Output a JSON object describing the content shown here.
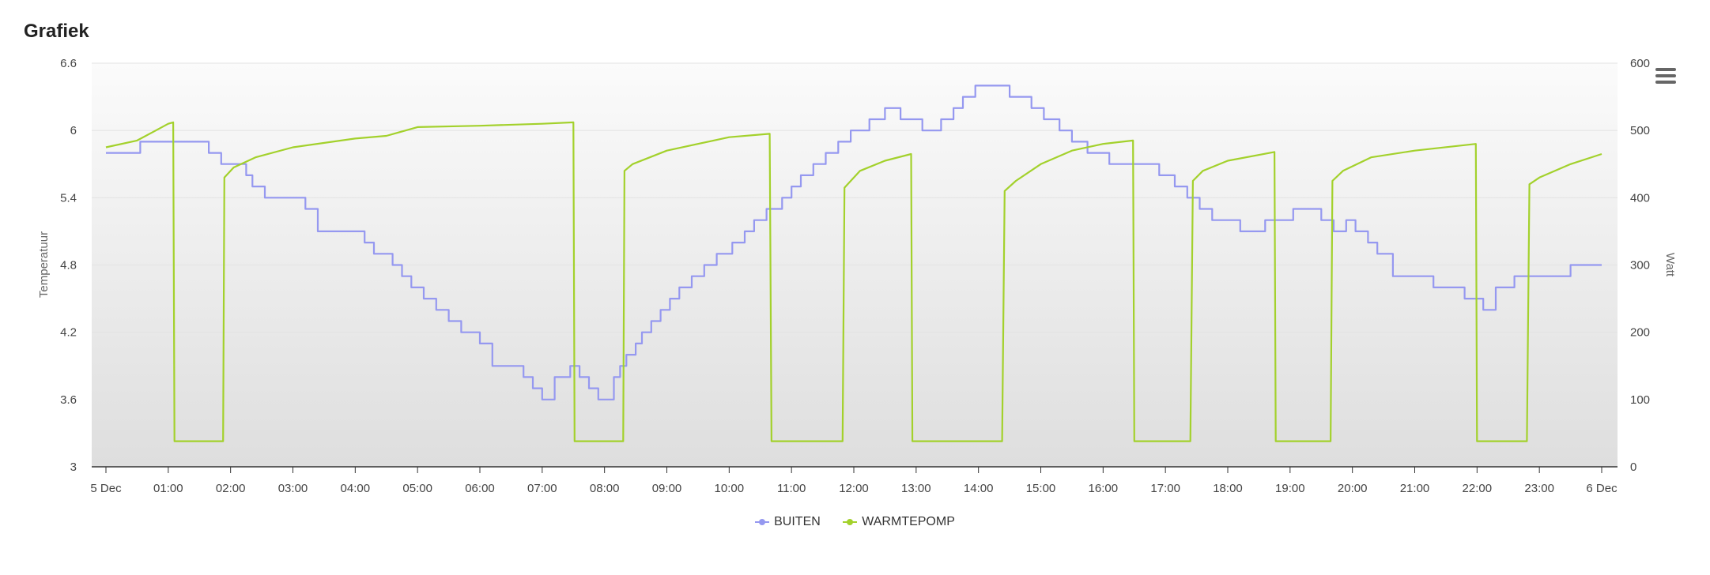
{
  "chart_data": {
    "type": "line",
    "title": "Grafiek",
    "x_ticks": [
      "5 Dec",
      "01:00",
      "02:00",
      "03:00",
      "04:00",
      "05:00",
      "06:00",
      "07:00",
      "08:00",
      "09:00",
      "10:00",
      "11:00",
      "12:00",
      "13:00",
      "14:00",
      "15:00",
      "16:00",
      "17:00",
      "18:00",
      "19:00",
      "20:00",
      "21:00",
      "22:00",
      "23:00",
      "6 Dec"
    ],
    "x_range_hours": [
      0,
      24
    ],
    "y_left": {
      "label": "Temperatuur",
      "ticks": [
        "3",
        "3.6",
        "4.2",
        "4.8",
        "5.4",
        "6",
        "6.6"
      ],
      "range": [
        3,
        6.6
      ]
    },
    "y_right": {
      "label": "Watt",
      "ticks": [
        "0",
        "100",
        "200",
        "300",
        "400",
        "500",
        "600"
      ],
      "range": [
        0,
        600
      ]
    },
    "grid": true,
    "legend_position": "bottom-center",
    "series": [
      {
        "name": "BUITEN",
        "axis": "left",
        "color": "#9598f0",
        "step": true,
        "x": [
          0,
          0.4,
          0.55,
          1.5,
          1.65,
          1.85,
          2.0,
          2.25,
          2.35,
          2.55,
          3.0,
          3.2,
          3.4,
          4.0,
          4.15,
          4.3,
          4.6,
          4.75,
          4.9,
          5.1,
          5.3,
          5.5,
          5.7,
          6.0,
          6.2,
          6.5,
          6.7,
          6.85,
          7.0,
          7.2,
          7.45,
          7.6,
          7.75,
          7.9,
          8.15,
          8.25,
          8.35,
          8.5,
          8.6,
          8.75,
          8.9,
          9.05,
          9.2,
          9.4,
          9.6,
          9.8,
          10.05,
          10.25,
          10.4,
          10.6,
          10.85,
          11.0,
          11.15,
          11.35,
          11.55,
          11.75,
          11.95,
          12.25,
          12.5,
          12.75,
          13.1,
          13.4,
          13.6,
          13.75,
          13.95,
          14.2,
          14.5,
          14.85,
          15.05,
          15.3,
          15.5,
          15.75,
          16.1,
          16.9,
          17.15,
          17.35,
          17.55,
          17.75,
          18.2,
          18.6,
          19.05,
          19.5,
          19.7,
          19.9,
          20.05,
          20.25,
          20.4,
          20.65,
          21.3,
          21.8,
          22.1,
          22.3,
          22.6,
          23.1,
          23.5,
          24
        ],
        "y": [
          5.8,
          5.8,
          5.9,
          5.9,
          5.8,
          5.7,
          5.7,
          5.6,
          5.5,
          5.4,
          5.4,
          5.3,
          5.1,
          5.1,
          5.0,
          4.9,
          4.8,
          4.7,
          4.6,
          4.5,
          4.4,
          4.3,
          4.2,
          4.1,
          3.9,
          3.9,
          3.8,
          3.7,
          3.6,
          3.8,
          3.9,
          3.8,
          3.7,
          3.6,
          3.8,
          3.9,
          4.0,
          4.1,
          4.2,
          4.3,
          4.4,
          4.5,
          4.6,
          4.7,
          4.8,
          4.9,
          5.0,
          5.1,
          5.2,
          5.3,
          5.4,
          5.5,
          5.6,
          5.7,
          5.8,
          5.9,
          6.0,
          6.1,
          6.2,
          6.1,
          6.0,
          6.1,
          6.2,
          6.3,
          6.4,
          6.4,
          6.3,
          6.2,
          6.1,
          6.0,
          5.9,
          5.8,
          5.7,
          5.6,
          5.5,
          5.4,
          5.3,
          5.2,
          5.1,
          5.2,
          5.3,
          5.2,
          5.1,
          5.2,
          5.1,
          5.0,
          4.9,
          4.7,
          4.6,
          4.5,
          4.4,
          4.6,
          4.7,
          4.7,
          4.8,
          4.8
        ]
      },
      {
        "name": "WARMTEPOMP",
        "axis": "right",
        "color": "#a3d12c",
        "x": [
          0,
          0.5,
          0.8,
          1.0,
          1.08,
          1.1,
          1.88,
          1.9,
          2.05,
          2.4,
          3.0,
          4.0,
          4.5,
          5.0,
          6.0,
          7.0,
          7.5,
          7.52,
          8.3,
          8.32,
          8.45,
          9.0,
          10.0,
          10.65,
          10.68,
          11.82,
          11.85,
          12.1,
          12.5,
          12.92,
          12.94,
          14.38,
          14.42,
          14.6,
          15.0,
          15.5,
          16.0,
          16.48,
          16.5,
          17.4,
          17.44,
          17.6,
          18.0,
          18.75,
          18.77,
          19.65,
          19.68,
          19.85,
          20.3,
          21.0,
          21.98,
          22.0,
          22.8,
          22.84,
          23.0,
          23.5,
          24
        ],
        "y": [
          475,
          485,
          500,
          510,
          512,
          38,
          38,
          430,
          445,
          460,
          475,
          488,
          492,
          505,
          507,
          510,
          512,
          38,
          38,
          440,
          450,
          470,
          490,
          495,
          38,
          38,
          415,
          440,
          455,
          465,
          38,
          38,
          410,
          425,
          450,
          470,
          480,
          485,
          38,
          38,
          425,
          440,
          455,
          468,
          38,
          38,
          425,
          440,
          460,
          470,
          480,
          38,
          38,
          420,
          430,
          450,
          465
        ]
      }
    ]
  }
}
